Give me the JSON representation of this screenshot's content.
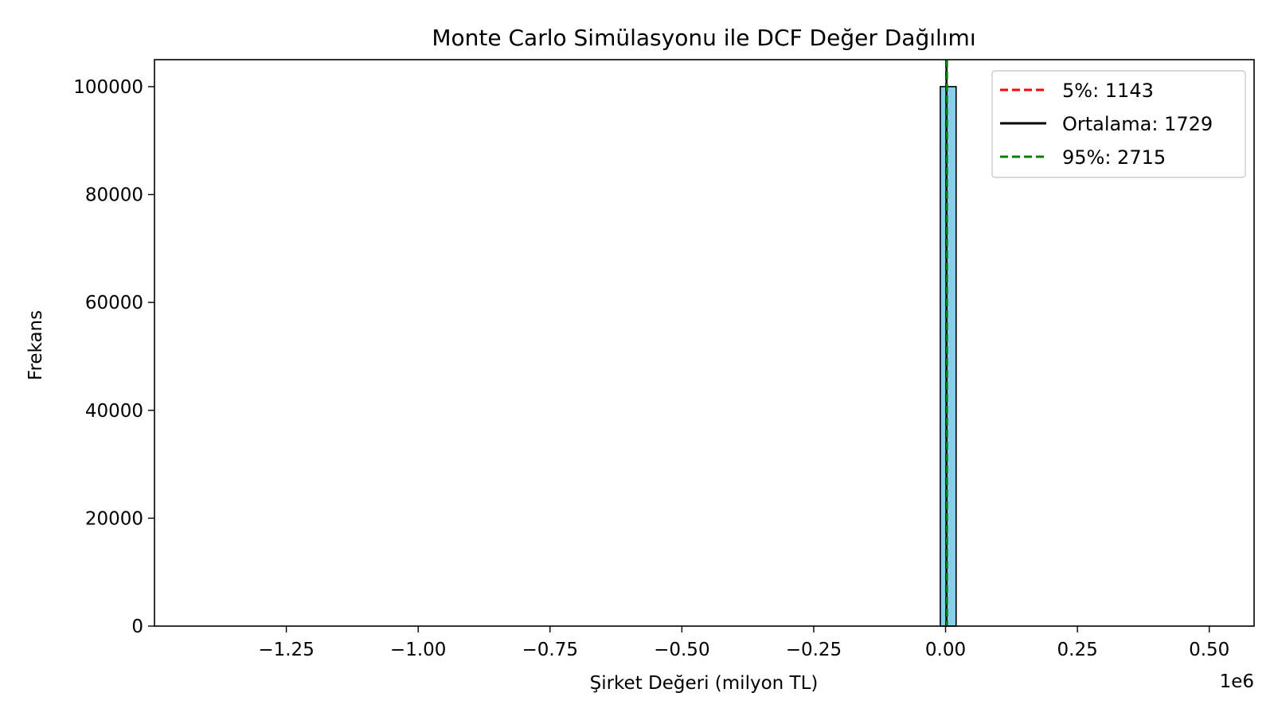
{
  "chart_data": {
    "type": "bar",
    "title": "Monte Carlo Simülasyonu ile DCF Değer Dağılımı",
    "xlabel": "Şirket Değeri (milyon TL)",
    "ylabel": "Frekans",
    "x_offset_label": "1e6",
    "xlim": [
      -1.5,
      0.585
    ],
    "ylim": [
      0,
      105000
    ],
    "x_scale_factor": 1000000,
    "xticks": [
      -1.25,
      -1.0,
      -0.75,
      -0.5,
      -0.25,
      0.0,
      0.25,
      0.5
    ],
    "xtick_labels": [
      "−1.25",
      "−1.00",
      "−0.75",
      "−0.50",
      "−0.25",
      "0.00",
      "0.25",
      "0.50"
    ],
    "yticks": [
      0,
      20000,
      40000,
      60000,
      80000,
      100000
    ],
    "ytick_labels": [
      "0",
      "20000",
      "40000",
      "60000",
      "80000",
      "100000"
    ],
    "histogram": {
      "bins": [
        {
          "x0": -0.01,
          "x1": 0.02,
          "count": 100000
        }
      ],
      "fill": "#87CEEB",
      "edge": "#000000"
    },
    "series": [
      {
        "name": "5%: 1143",
        "value": 1143,
        "color": "#ff0000",
        "style": "dashed"
      },
      {
        "name": "Ortalama: 1729",
        "value": 1729,
        "color": "#000000",
        "style": "solid"
      },
      {
        "name": "95%: 2715",
        "value": 2715,
        "color": "#008000",
        "style": "dashed"
      }
    ],
    "legend_position": "top-right"
  }
}
